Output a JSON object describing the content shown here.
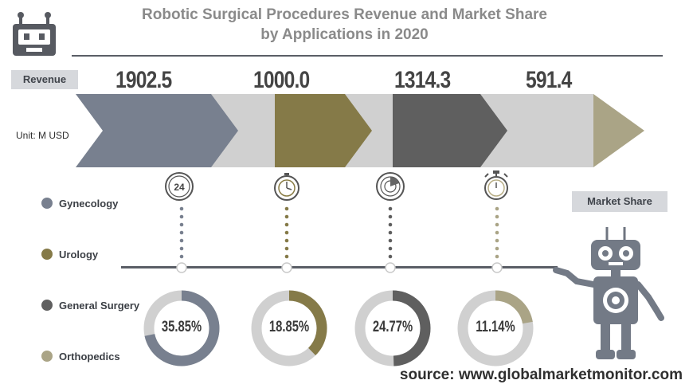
{
  "title_line1": "Robotic Surgical Procedures Revenue and Market Share",
  "title_line2": "by Applications in 2020",
  "revenue_tag": "Revenue",
  "unit_label": "Unit: M USD",
  "market_share_tag": "Market Share",
  "source": "source: www.globalmarketmonitor.com",
  "icons": [
    "24-hour-clock-icon",
    "stopwatch-icon",
    "radar-gauge-icon",
    "timer-icon"
  ],
  "colors": {
    "gynecology": "#78808f",
    "urology": "#857a48",
    "general_surgery": "#5f5f5f",
    "orthopedics": "#aaa486",
    "track": "#d0d0d0"
  },
  "chart_data": [
    {
      "type": "bar",
      "categories": [
        "Gynecology",
        "Urology",
        "General Surgery",
        "Orthopedics"
      ],
      "values": [
        1902.5,
        1000.0,
        1314.3,
        591.4
      ],
      "value_labels": [
        "1902.5",
        "1000.0",
        "1314.3",
        "591.4"
      ],
      "unit": "M USD"
    },
    {
      "type": "pie",
      "categories": [
        "Gynecology",
        "Urology",
        "General Surgery",
        "Orthopedics"
      ],
      "values": [
        35.85,
        18.85,
        24.77,
        11.14
      ],
      "value_labels": [
        "35.85%",
        "18.85%",
        "24.77%",
        "11.14%"
      ]
    }
  ]
}
